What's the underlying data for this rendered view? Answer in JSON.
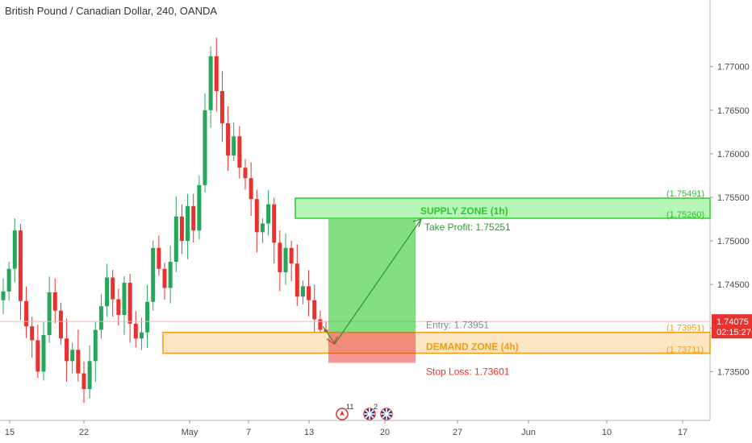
{
  "chart_data": {
    "type": "candlestick",
    "title": "British Pound / Canadian Dollar, 240, OANDA",
    "x_ticks": [
      "15",
      "22",
      "May",
      "7",
      "13",
      "20",
      "27",
      "Jun",
      "10",
      "17"
    ],
    "y_ticks": [
      "1.77000",
      "1.76500",
      "1.76000",
      "1.75500",
      "1.75000",
      "1.74500",
      "1.74000",
      "1.73500"
    ],
    "ylim": [
      1.7318,
      1.777
    ],
    "grid": false,
    "current_price": {
      "value": 1.74075,
      "label": "1.74075",
      "countdown": "02:15:27",
      "color": "#e8322f"
    },
    "colors": {
      "up": "#26a65b",
      "down": "#e8322f",
      "supply": "#2ecc2e",
      "demand": "#f39c12",
      "stop": "#e8322f",
      "target": "#2ecc2e"
    },
    "series": [
      {
        "name": "GBPCAD",
        "close": [
          1.7442,
          1.7468,
          1.7512,
          1.7431,
          1.7402,
          1.7386,
          1.735,
          1.7392,
          1.7441,
          1.742,
          1.7388,
          1.7362,
          1.7375,
          1.7348,
          1.733,
          1.7362,
          1.7398,
          1.7425,
          1.7458,
          1.7433,
          1.7415,
          1.7452,
          1.7405,
          1.7388,
          1.7395,
          1.743,
          1.7492,
          1.7468,
          1.7446,
          1.7476,
          1.7528,
          1.75,
          1.754,
          1.7512,
          1.7564,
          1.765,
          1.7712,
          1.7672,
          1.7635,
          1.7598,
          1.762,
          1.7584,
          1.7572,
          1.7548,
          1.751,
          1.752,
          1.7542,
          1.7498,
          1.7464,
          1.7492,
          1.7474,
          1.7436,
          1.7448,
          1.7432,
          1.741,
          1.7398,
          1.738
        ]
      }
    ],
    "zones": [
      {
        "name": "SUPPLY ZONE (1h)",
        "top": 1.75491,
        "bottom": 1.7526,
        "top_label": "(1.75491)",
        "bottom_label": "(1.75260)"
      },
      {
        "name": "DEMAND ZONE (4h)",
        "top": 1.73951,
        "bottom": 1.73711,
        "top_label": "(1.73951)",
        "bottom_label": "(1.73711)"
      }
    ],
    "position": {
      "entry": 1.73951,
      "take_profit": 1.75251,
      "stop_loss": 1.73601,
      "entry_label": "Entry: 1.73951",
      "take_profit_label": "Take Profit: 1.75251",
      "stop_loss_label": "Stop Loss: 1.73601"
    },
    "events": [
      {
        "icon": "canada-flag-icon",
        "count": "11"
      },
      {
        "icon": "uk-flag-icon",
        "count": "2"
      },
      {
        "icon": "uk-flag-icon",
        "count": ""
      }
    ]
  }
}
